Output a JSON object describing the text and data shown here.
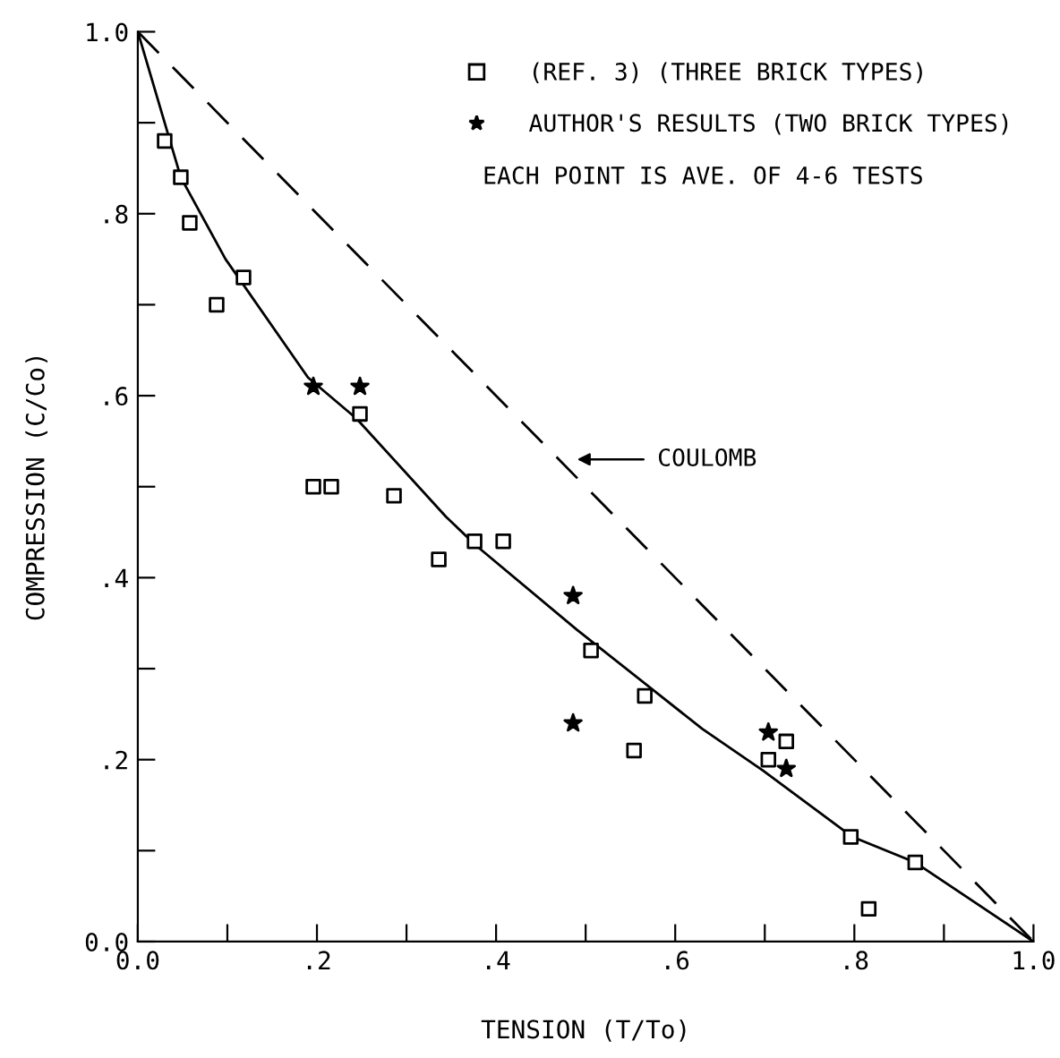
{
  "chart_data": {
    "type": "scatter",
    "xlabel": "TENSION (T/To)",
    "ylabel": "COMPRESSION (C/Co)",
    "xlim": [
      0,
      1.0
    ],
    "ylim": [
      0,
      1.0
    ],
    "xticks": [
      {
        "value": 0,
        "label": "0.0"
      },
      {
        "value": 0.1,
        "label": null
      },
      {
        "value": 0.2,
        "label": ".2"
      },
      {
        "value": 0.3,
        "label": null
      },
      {
        "value": 0.4,
        "label": ".4"
      },
      {
        "value": 0.5,
        "label": null
      },
      {
        "value": 0.6,
        "label": ".6"
      },
      {
        "value": 0.7,
        "label": null
      },
      {
        "value": 0.8,
        "label": ".8"
      },
      {
        "value": 0.9,
        "label": null
      },
      {
        "value": 1.0,
        "label": "1.0"
      }
    ],
    "yticks": [
      {
        "value": 0,
        "label": "0.0"
      },
      {
        "value": 0.1,
        "label": null
      },
      {
        "value": 0.2,
        "label": ".2"
      },
      {
        "value": 0.3,
        "label": null
      },
      {
        "value": 0.4,
        "label": ".4"
      },
      {
        "value": 0.5,
        "label": null
      },
      {
        "value": 0.6,
        "label": ".6"
      },
      {
        "value": 0.7,
        "label": null
      },
      {
        "value": 0.8,
        "label": ".8"
      },
      {
        "value": 0.9,
        "label": null
      },
      {
        "value": 1.0,
        "label": "1.0"
      }
    ],
    "grid": false,
    "legend": "top right",
    "series": [
      {
        "name": "(REF. 3) (THREE BRICK TYPES)",
        "color": "#000000",
        "marker": "square",
        "x": [
          0.03,
          0.048,
          0.058,
          0.088,
          0.118,
          0.196,
          0.216,
          0.248,
          0.286,
          0.336,
          0.376,
          0.408,
          0.506,
          0.554,
          0.566,
          0.704,
          0.724,
          0.796,
          0.816,
          0.868
        ],
        "values": [
          0.88,
          0.84,
          0.79,
          0.7,
          0.73,
          0.5,
          0.5,
          0.58,
          0.49,
          0.42,
          0.44,
          0.44,
          0.32,
          0.21,
          0.27,
          0.2,
          0.22,
          0.115,
          0.036,
          0.087
        ]
      },
      {
        "name": "AUTHOR'S RESULTS (TWO BRICK TYPES)",
        "color": "#000000",
        "marker": "star",
        "x": [
          0.196,
          0.248,
          0.486,
          0.486,
          0.704,
          0.724
        ],
        "values": [
          0.61,
          0.61,
          0.38,
          0.24,
          0.23,
          0.19
        ]
      },
      {
        "type": "line",
        "color": "#000000",
        "marker": "none",
        "line_style": "solid",
        "x": [
          0,
          0.048,
          0.098,
          0.19,
          0.244,
          0.344,
          0.378,
          0.49,
          0.63,
          0.698,
          0.798,
          0.868,
          1.0
        ],
        "values": [
          1.0,
          0.84,
          0.75,
          0.62,
          0.575,
          0.467,
          0.435,
          0.343,
          0.234,
          0.188,
          0.115,
          0.087,
          0.0
        ]
      },
      {
        "type": "line",
        "color": "#000000",
        "marker": "none",
        "line_style": "dashed",
        "x": [
          0,
          1.0
        ],
        "values": [
          1.0,
          0.0
        ]
      }
    ],
    "annotations": [
      "EACH POINT IS AVE. OF 4-6 TESTS",
      "COULOMB"
    ]
  }
}
